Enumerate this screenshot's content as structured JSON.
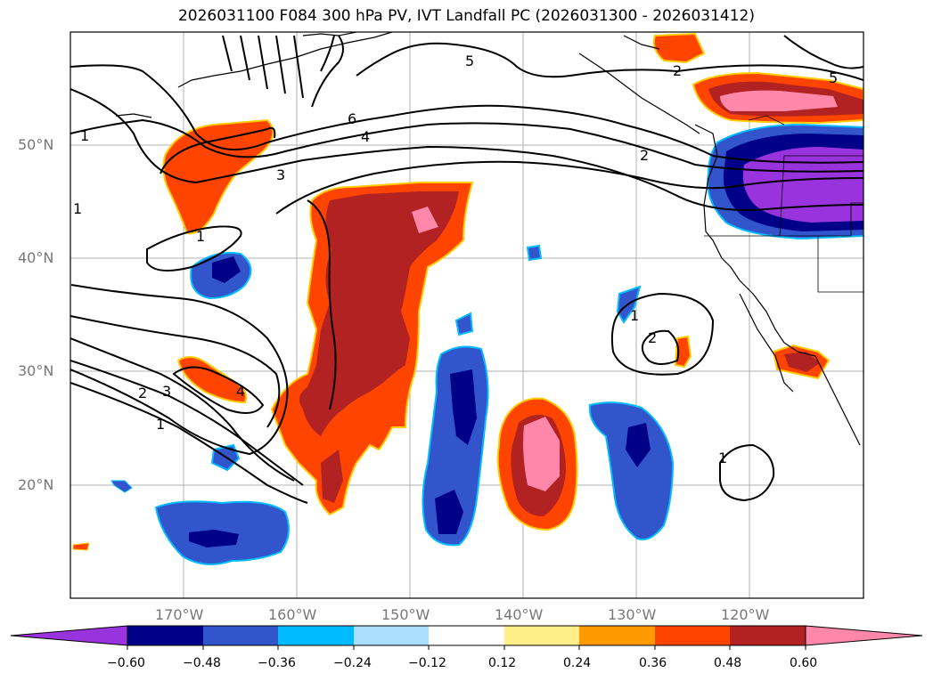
{
  "title": "2026031100 F084 300 hPa PV, IVT Landfall PC (2026031300 - 2026031412)",
  "lat_labels": [
    "50°N",
    "40°N",
    "30°N",
    "20°N"
  ],
  "lon_labels": [
    "170°W",
    "160°W",
    "150°W",
    "140°W",
    "130°W",
    "120°W"
  ],
  "contour_labels": [
    "5",
    "5",
    "6",
    "4",
    "3",
    "2",
    "1",
    "1",
    "1",
    "2",
    "3",
    "4",
    "2",
    "1",
    "1",
    "2",
    "1"
  ],
  "colorbar": {
    "ticks": [
      "−0.60",
      "−0.48",
      "−0.36",
      "−0.24",
      "−0.12",
      "0.12",
      "0.24",
      "0.36",
      "0.48",
      "0.60"
    ],
    "colors": [
      "#9933dd",
      "#000088",
      "#3355cc",
      "#00bbff",
      "#aaddff",
      "#ffffff",
      "#ffee88",
      "#ff9900",
      "#ff4400",
      "#b22222",
      "#ff88aa",
      "#ff88aa"
    ]
  }
}
